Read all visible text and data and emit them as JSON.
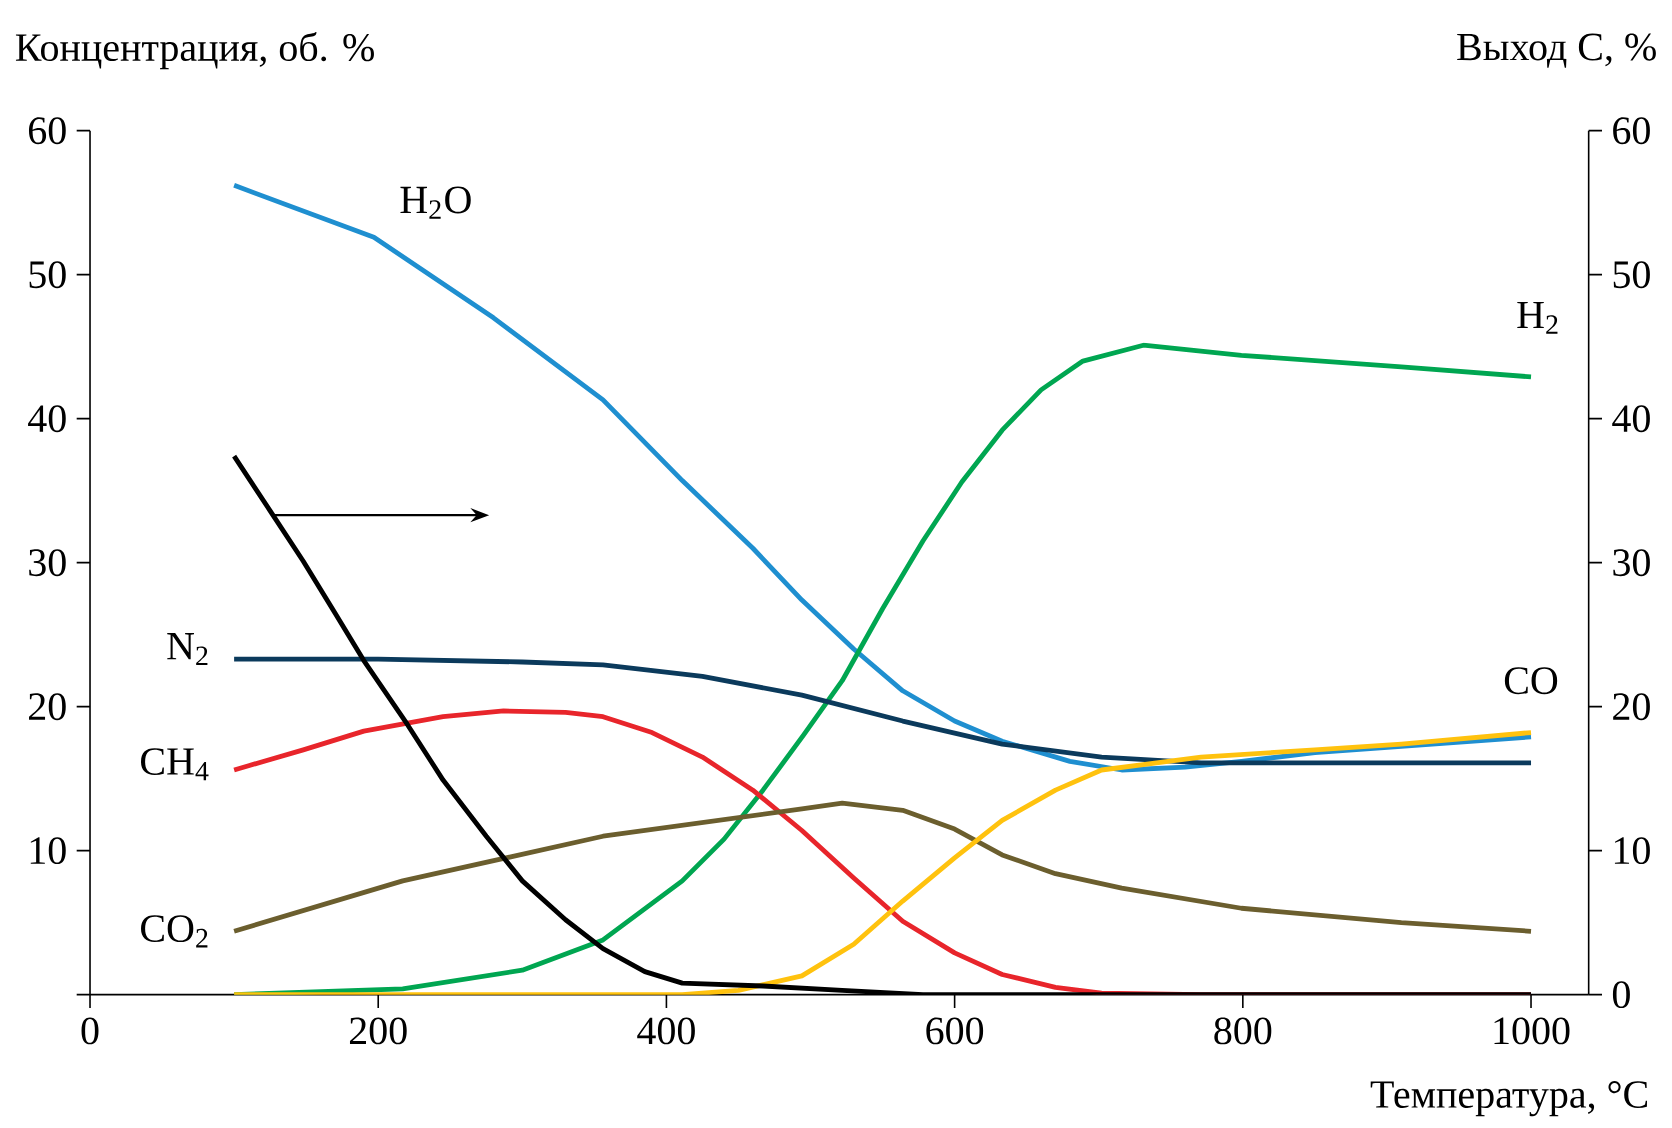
{
  "chart_data": {
    "type": "line",
    "xlabel": "Температура, °C",
    "ylabel": "Концентрация, об. %",
    "y2label": "Выход C, %",
    "xlim": [
      0,
      1040
    ],
    "xticks": [
      0,
      200,
      400,
      600,
      800,
      1000
    ],
    "ylim": [
      0,
      60
    ],
    "yticks": [
      {
        "value": 0,
        "label": null
      },
      10,
      20,
      30,
      40,
      50,
      60
    ],
    "y2lim": [
      0,
      60
    ],
    "y2ticks": [
      0,
      10,
      20,
      30,
      40,
      50,
      60
    ],
    "grid": false,
    "marker": "none",
    "line_style": "solid",
    "series": [
      {
        "name": "H$_{2}$O",
        "color": "#1f8fd0",
        "x": [
          100,
          197,
          280,
          356,
          411,
          460,
          494,
          530,
          564,
          600,
          633,
          680,
          716,
          760,
          799,
          850,
          910,
          1000
        ],
        "values": [
          56.2,
          52.6,
          47,
          41.3,
          35.7,
          31,
          27.4,
          24,
          21.1,
          19,
          17.6,
          16.2,
          15.6,
          15.8,
          16.2,
          16.8,
          null,
          17.9
        ]
      },
      {
        "name": "H$_{2}$",
        "color": "#00a651",
        "x": [
          100,
          217,
          300,
          356,
          411,
          440,
          467,
          495,
          522,
          550,
          578,
          605,
          633,
          660,
          689,
          731,
          799,
          910,
          1000
        ],
        "values": [
          0,
          0.4,
          1.7,
          3.8,
          7.9,
          10.8,
          14.2,
          18,
          21.8,
          26.8,
          31.5,
          35.6,
          39.2,
          42,
          44,
          45.1,
          44.4,
          43.6,
          42.9
        ]
      },
      {
        "name": "N$_{2}$",
        "color": "#0b3a5c",
        "x": [
          100,
          200,
          300,
          356,
          425,
          494,
          564,
          633,
          702,
          771,
          850,
          1000
        ],
        "values": [
          23.3,
          23.3,
          23.1,
          22.9,
          22.1,
          20.8,
          19,
          17.4,
          16.5,
          16.1,
          16.1,
          16.1
        ]
      },
      {
        "name": "CH$_{4}$",
        "color": "#e8252b",
        "x": [
          100,
          148,
          190,
          245,
          287,
          330,
          356,
          390,
          425,
          460,
          494,
          530,
          564,
          600,
          633,
          670,
          702,
          771,
          1000
        ],
        "values": [
          15.6,
          17,
          18.3,
          19.3,
          19.7,
          19.6,
          19.3,
          18.2,
          16.5,
          14.2,
          11.4,
          8.1,
          5.1,
          2.9,
          1.4,
          0.5,
          0.1,
          0,
          0
        ]
      },
      {
        "name": "CO$_{2}$",
        "color": "#6b5e2e",
        "x": [
          100,
          217,
          356,
          494,
          522,
          564,
          600,
          633,
          670,
          716,
          799,
          910,
          1000
        ],
        "values": [
          4.4,
          7.9,
          11,
          12.9,
          13.3,
          12.8,
          11.5,
          9.7,
          8.4,
          7.4,
          6,
          5,
          4.4
        ]
      },
      {
        "name": "CO",
        "color": "#ffc20e",
        "x": [
          100,
          300,
          411,
          450,
          494,
          530,
          564,
          600,
          633,
          670,
          702,
          771,
          850,
          910,
          1000
        ],
        "values": [
          0,
          0,
          0,
          0.3,
          1.3,
          3.5,
          6.5,
          9.5,
          12.1,
          14.2,
          15.6,
          16.5,
          17,
          17.4,
          18.2
        ]
      },
      {
        "color": "#000000",
        "axis": "y2",
        "x": [
          100,
          125,
          148,
          170,
          190,
          220,
          245,
          275,
          300,
          330,
          356,
          385,
          411,
          467,
          522,
          578,
          700,
          1000
        ],
        "values": [
          37.4,
          33.6,
          30.1,
          26.5,
          23.2,
          18.8,
          14.9,
          11,
          7.9,
          5.2,
          3.2,
          1.6,
          0.8,
          0.6,
          0.3,
          0,
          0,
          0
        ]
      }
    ]
  }
}
